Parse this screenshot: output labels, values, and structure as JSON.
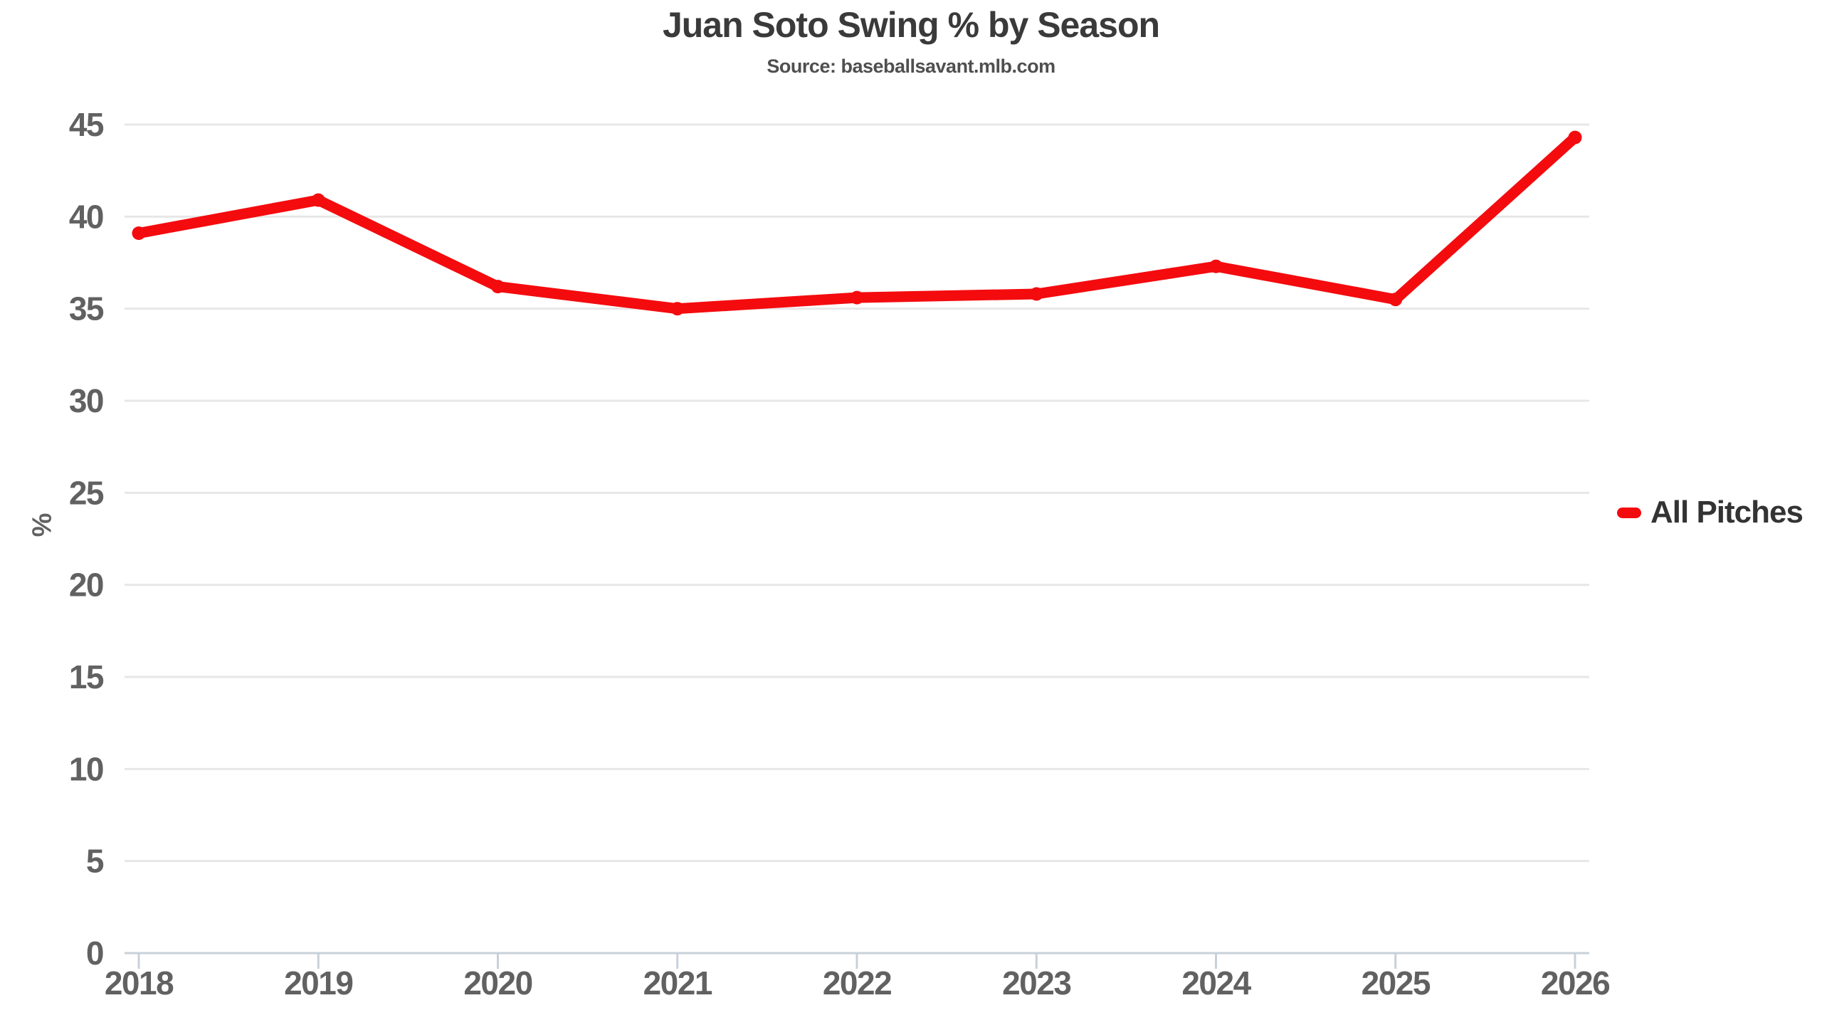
{
  "title": "Juan Soto Swing % by Season",
  "subtitle": "Source: baseballsavant.mlb.com",
  "legend": {
    "label": "All Pitches"
  },
  "chart_data": {
    "type": "line",
    "categories": [
      "2018",
      "2019",
      "2020",
      "2021",
      "2022",
      "2023",
      "2024",
      "2025",
      "2026"
    ],
    "series": [
      {
        "name": "All Pitches",
        "values": [
          39.1,
          40.9,
          36.2,
          35.0,
          35.6,
          35.8,
          37.3,
          35.5,
          44.3
        ],
        "color": "#f40b0e"
      }
    ],
    "title": "Juan Soto Swing % by Season",
    "subtitle": "Source: baseballsavant.mlb.com",
    "xlabel": "",
    "ylabel": "%",
    "ylim": [
      0,
      45
    ],
    "ytick_step": 5,
    "grid": true,
    "legend_position": "right-middle"
  },
  "colors": {
    "accent": "#f40b0e",
    "grid": "#e7e7e7",
    "axis": "#c8d0da",
    "tick_label": "#616161",
    "title": "#3a3a3a",
    "subtitle": "#4f4f4f",
    "legend_text": "#333333",
    "background": "#ffffff"
  }
}
